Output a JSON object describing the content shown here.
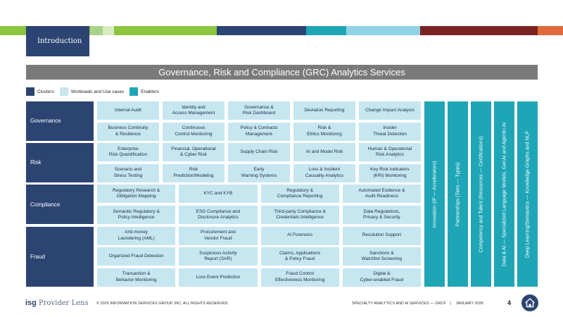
{
  "header": {
    "section_label": "Introduction",
    "title": "Governance, Risk and Compliance (GRC) Analytics Services",
    "stripe_colors": [
      "#8cc63f",
      "#a8d38a",
      "#d8ebc0",
      "#8cc63f",
      "#2b4471",
      "#1ea6b7",
      "#8fd3e6",
      "#7b2222",
      "#e06a3b"
    ]
  },
  "legend": {
    "clusters": "Clusters",
    "workloads": "Workloads and Use cases",
    "enablers": "Enablers"
  },
  "colors": {
    "cluster": "#2b4471",
    "workload": "#c6e6f0",
    "enabler": "#1ea6b7"
  },
  "clusters": [
    {
      "name": "Governance",
      "rows": [
        [
          "Internal Audit",
          "Identity and\nAccess Management",
          "Governance &\nRisk Dashboard",
          "Deviation Reporting",
          "Change Impact Analysis"
        ],
        [
          "Business Continuity\n& Resilience",
          "Continuous\nControl Monitoring",
          "Policy & Contracts\nManagement",
          "Risk &\nEthics Monitoring",
          "Insider\nThreat Detection"
        ]
      ]
    },
    {
      "name": "Risk",
      "rows": [
        [
          "Enterprise\nRisk Quantification",
          "Financial, Operational\n& Cyber Risk",
          "Supply Chain Risk",
          "AI and Model Risk",
          "Human & Operational\nRisk Analytics"
        ],
        [
          "Scenario and\nStress Testing",
          "Risk\nPrediction/Modeling",
          "Early\nWarning Systems",
          "Loss & Incident\nCausality Analytics",
          "Key Risk Indicators\n(KRI) Monitoring"
        ]
      ]
    },
    {
      "name": "Compliance",
      "rows": [
        [
          "Regulatory Research &\nObligation Mapping",
          "KYC and KYB",
          "Regulatory &\nCompliance Reporting",
          "Automated Evidence &\nAudit Readiness"
        ],
        [
          "Semantic Regulatory &\nPolicy Intelligence",
          "ESG Compliance and\nDisclosure Analytics",
          "Third-party Compliance &\nCredentials Intelligence",
          "Data Regulations,\nPrivacy & Security"
        ]
      ]
    },
    {
      "name": "Fraud",
      "rows": [
        [
          "Anti-money\nLaundering (AML)",
          "Procurement and\nVendor Fraud",
          "AI Forensics",
          "Resolution Support"
        ],
        [
          "Organized Fraud Detection",
          "Suspicious Activity\nReport (SAR)",
          "Claims, Applications\n& Policy Fraud",
          "Sanctions &\nWatchlist Screening"
        ],
        [
          "Transaction &\nBehavior Monitoring",
          "Loss Event Prediction",
          "Fraud Control\nEffectiveness Monitoring",
          "Digital &\nCyber-enabled Fraud"
        ]
      ]
    }
  ],
  "enablers": [
    "Innovation (IP — Accelerators)",
    "Partnerships (Tiers — Types)",
    "Competency and Talent (Resources — Certifications)",
    "Data & AI — Specialized Language Models, GenAI and Agentic AI",
    "Deep Learning/Semantics — Knowledge Graphs and NLP"
  ],
  "footer": {
    "logo_isg": "isg",
    "logo_text": "Provider Lens",
    "copyright": "© 2026 INFORMATION SERVICES GROUP, INC. ALL RIGHTS RESERVED.",
    "report": "SPECIALTY ANALYTICS AND AI SERVICES — GRCF",
    "separator": "|",
    "date": "JANUARY 2026",
    "page": "4"
  }
}
